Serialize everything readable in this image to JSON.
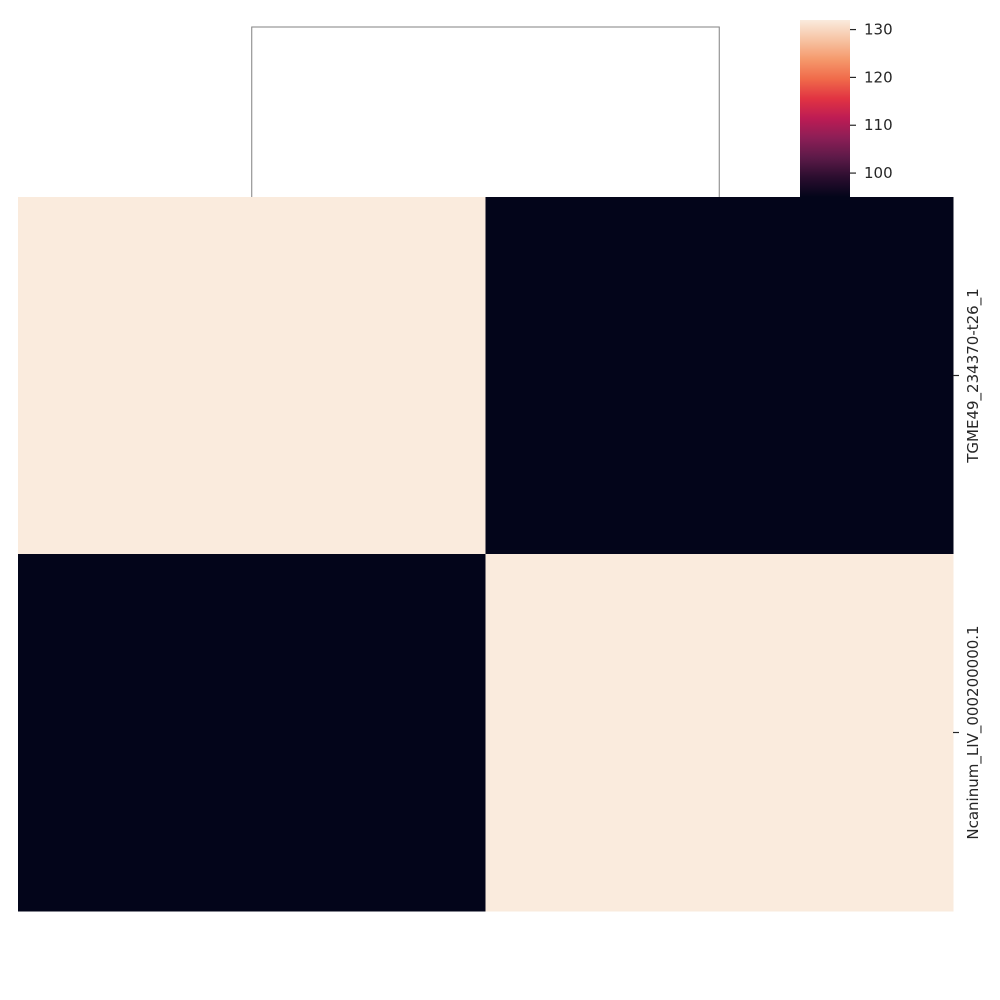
{
  "chart_data": {
    "type": "heatmap",
    "title": "",
    "rows": [
      "TGME49_234370-t26_1",
      "Ncaninum_LIV_000200000.1"
    ],
    "columns": [
      "",
      ""
    ],
    "values": [
      [
        132,
        95
      ],
      [
        95,
        132
      ]
    ],
    "colorbar": {
      "ticks": [
        100,
        110,
        120,
        130
      ],
      "range": [
        95,
        132
      ],
      "colormap": "rocket",
      "colors": [
        "#03051a",
        "#2a0d2e",
        "#5c1a48",
        "#8c1e56",
        "#bd1c54",
        "#e13342",
        "#f06a4a",
        "#f5996c",
        "#f7c4a4",
        "#faebdd"
      ]
    },
    "dendrogram": {
      "column": "shown",
      "row": "hidden",
      "line_color": "#808080"
    }
  }
}
